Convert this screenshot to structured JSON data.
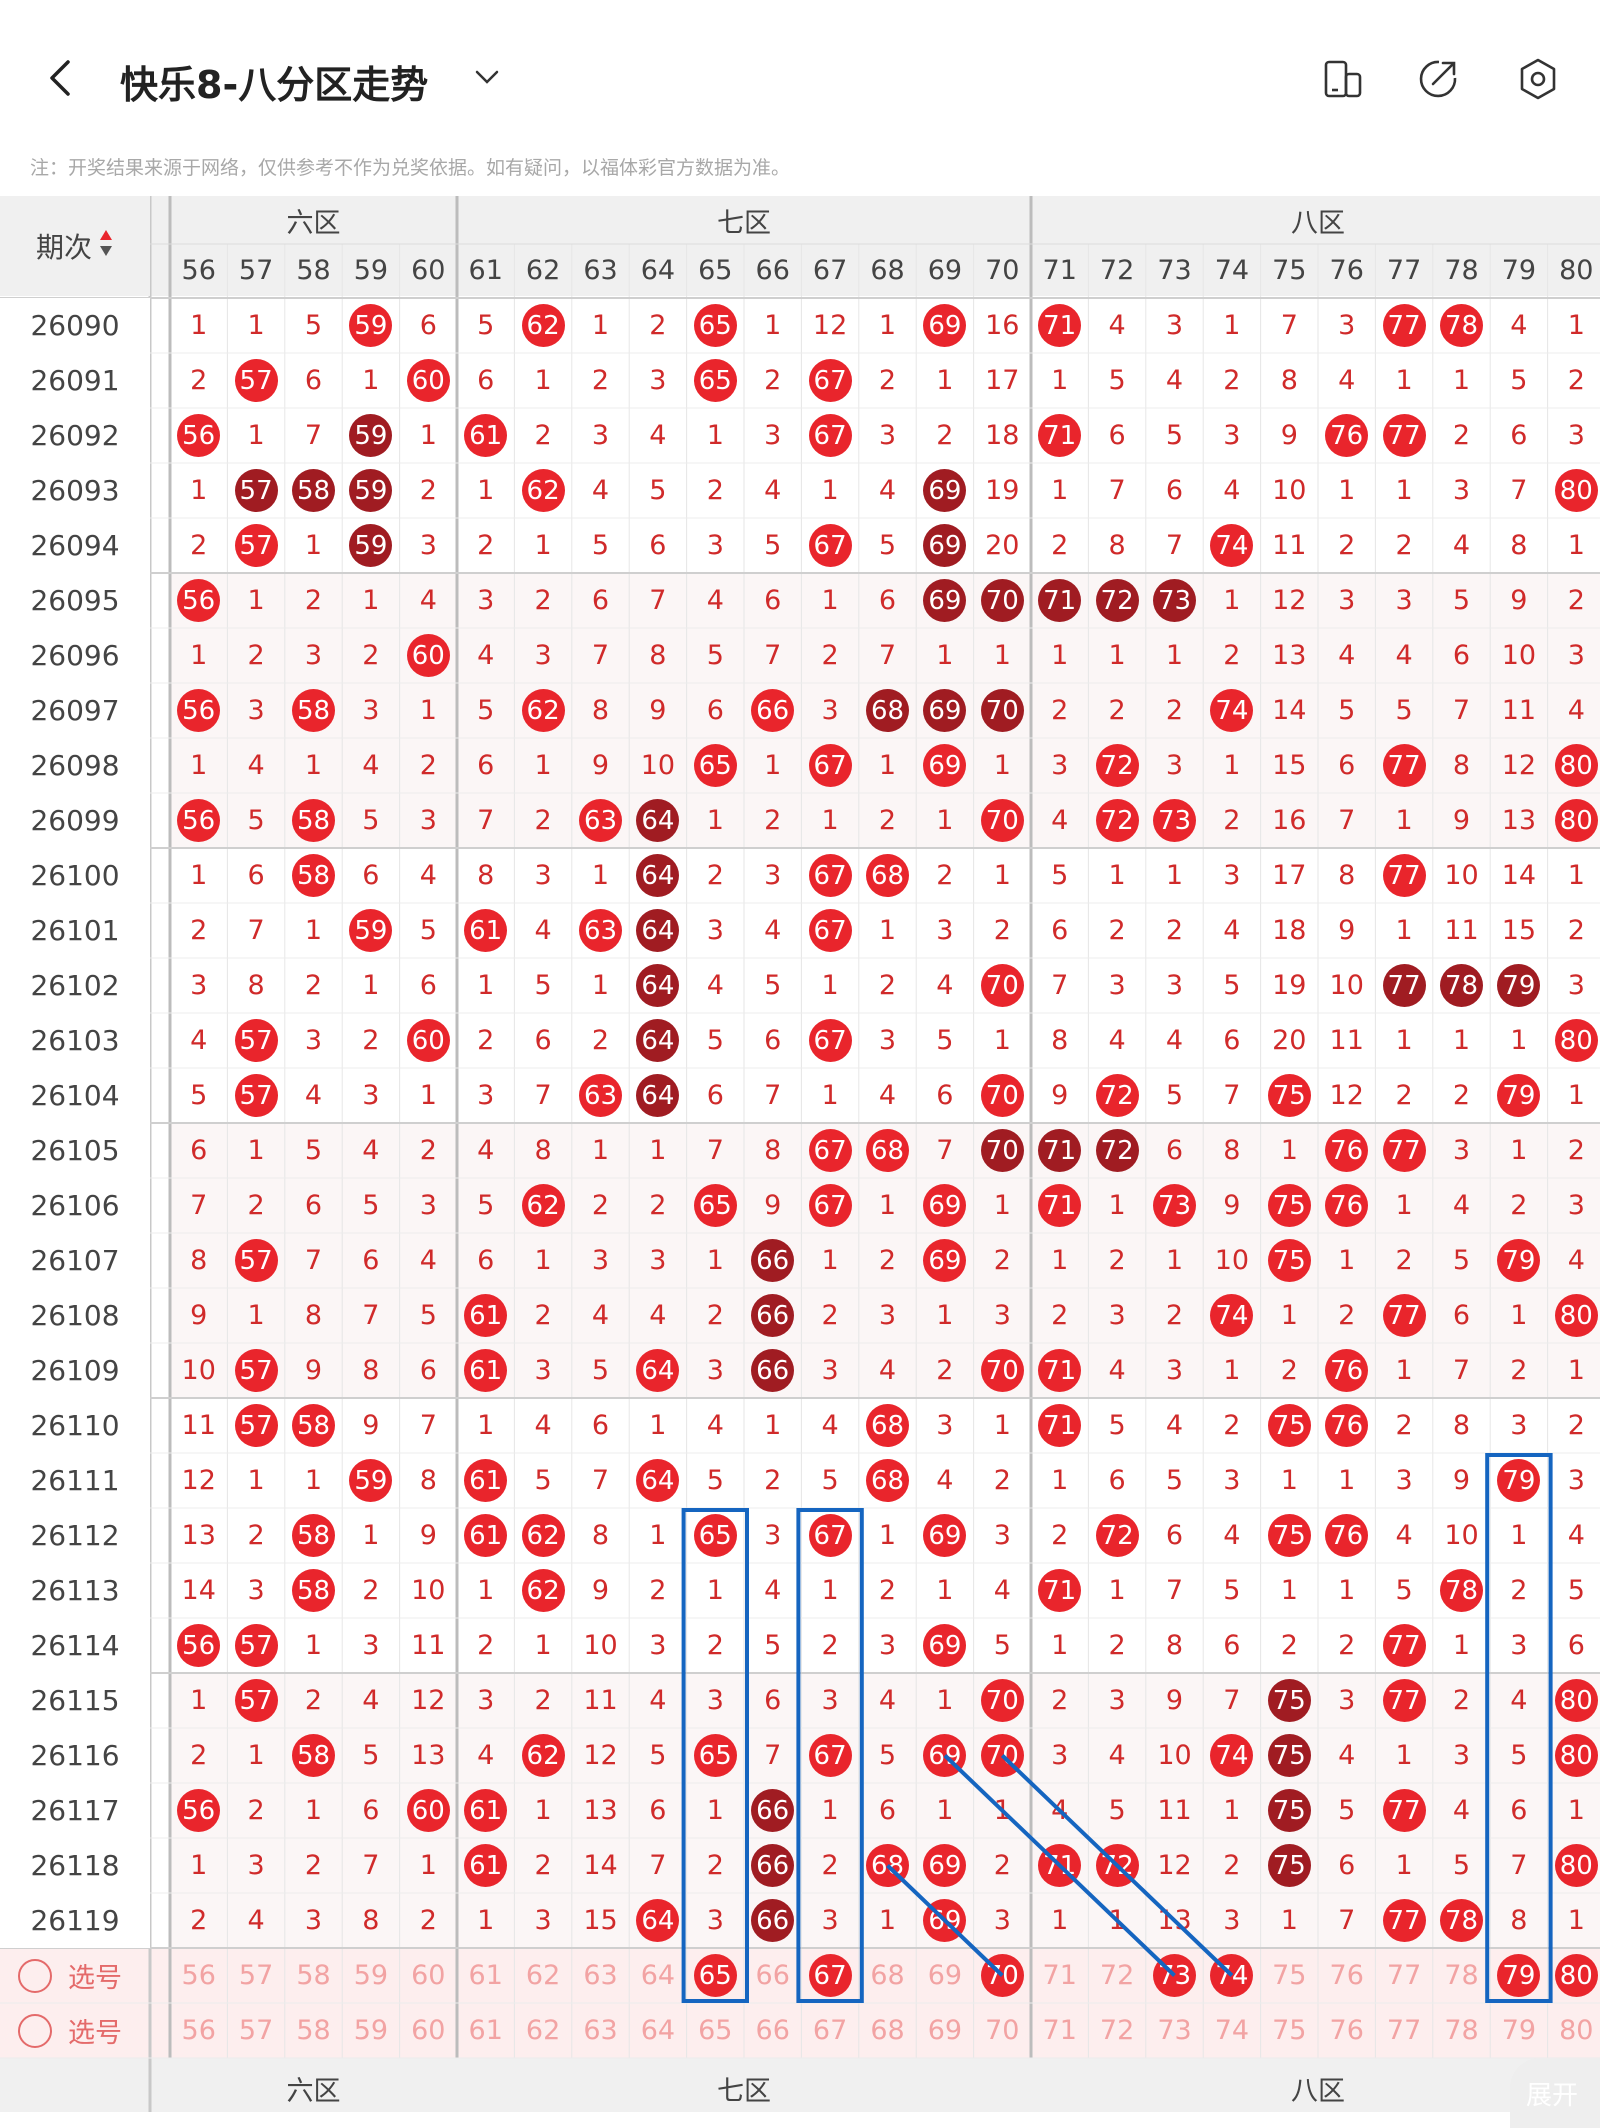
{
  "header": {
    "title": "快乐8-八分区走势",
    "note": "注：开奖结果来源于网络，仅供参考不作为兑奖依据。如有疑问，以福体彩官方数据为准。"
  },
  "table": {
    "issue_header": "期次",
    "zones": [
      "六区",
      "七区",
      "八区"
    ],
    "columns": [
      56,
      57,
      58,
      59,
      60,
      61,
      62,
      63,
      64,
      65,
      66,
      67,
      68,
      69,
      70,
      71,
      72,
      73,
      74,
      75,
      76,
      77,
      78,
      79,
      80
    ],
    "rows": [
      {
        "issue": "26090",
        "cells": [
          "1",
          "1",
          "5",
          "*59",
          "6",
          "5",
          "*62",
          "1",
          "2",
          "*65",
          "1",
          "12",
          "1",
          "*69",
          "16",
          "*71",
          "4",
          "3",
          "1",
          "7",
          "3",
          "*77",
          "*78",
          "4",
          "1"
        ]
      },
      {
        "issue": "26091",
        "cells": [
          "2",
          "*57",
          "6",
          "1",
          "*60",
          "6",
          "1",
          "2",
          "3",
          "*65",
          "2",
          "*67",
          "2",
          "1",
          "17",
          "1",
          "5",
          "4",
          "2",
          "8",
          "4",
          "1",
          "1",
          "5",
          "2"
        ]
      },
      {
        "issue": "26092",
        "cells": [
          "*56",
          "1",
          "7",
          "#59",
          "1",
          "*61",
          "2",
          "3",
          "4",
          "1",
          "3",
          "*67",
          "3",
          "2",
          "18",
          "*71",
          "6",
          "5",
          "3",
          "9",
          "*76",
          "*77",
          "2",
          "6",
          "3"
        ]
      },
      {
        "issue": "26093",
        "cells": [
          "1",
          "#57",
          "#58",
          "#59",
          "2",
          "1",
          "*62",
          "4",
          "5",
          "2",
          "4",
          "1",
          "4",
          "#69",
          "19",
          "1",
          "7",
          "6",
          "4",
          "10",
          "1",
          "1",
          "3",
          "7",
          "*80"
        ]
      },
      {
        "issue": "26094",
        "cells": [
          "2",
          "*57",
          "1",
          "#59",
          "3",
          "2",
          "1",
          "5",
          "6",
          "3",
          "5",
          "*67",
          "5",
          "#69",
          "20",
          "2",
          "8",
          "7",
          "*74",
          "11",
          "2",
          "2",
          "4",
          "8",
          "1"
        ]
      },
      {
        "issue": "26095",
        "cells": [
          "*56",
          "1",
          "2",
          "1",
          "4",
          "3",
          "2",
          "6",
          "7",
          "4",
          "6",
          "1",
          "6",
          "#69",
          "#70",
          "#71",
          "#72",
          "#73",
          "1",
          "12",
          "3",
          "3",
          "5",
          "9",
          "2"
        ]
      },
      {
        "issue": "26096",
        "cells": [
          "1",
          "2",
          "3",
          "2",
          "*60",
          "4",
          "3",
          "7",
          "8",
          "5",
          "7",
          "2",
          "7",
          "1",
          "1",
          "1",
          "1",
          "1",
          "2",
          "13",
          "4",
          "4",
          "6",
          "10",
          "3"
        ]
      },
      {
        "issue": "26097",
        "cells": [
          "*56",
          "3",
          "*58",
          "3",
          "1",
          "5",
          "*62",
          "8",
          "9",
          "6",
          "*66",
          "3",
          "#68",
          "#69",
          "#70",
          "2",
          "2",
          "2",
          "*74",
          "14",
          "5",
          "5",
          "7",
          "11",
          "4"
        ]
      },
      {
        "issue": "26098",
        "cells": [
          "1",
          "4",
          "1",
          "4",
          "2",
          "6",
          "1",
          "9",
          "10",
          "*65",
          "1",
          "*67",
          "1",
          "*69",
          "1",
          "3",
          "*72",
          "3",
          "1",
          "15",
          "6",
          "*77",
          "8",
          "12",
          "*80"
        ]
      },
      {
        "issue": "26099",
        "cells": [
          "*56",
          "5",
          "*58",
          "5",
          "3",
          "7",
          "2",
          "*63",
          "#64",
          "1",
          "2",
          "1",
          "2",
          "1",
          "*70",
          "4",
          "*72",
          "*73",
          "2",
          "16",
          "7",
          "1",
          "9",
          "13",
          "*80"
        ]
      },
      {
        "issue": "26100",
        "cells": [
          "1",
          "6",
          "*58",
          "6",
          "4",
          "8",
          "3",
          "1",
          "#64",
          "2",
          "3",
          "*67",
          "*68",
          "2",
          "1",
          "5",
          "1",
          "1",
          "3",
          "17",
          "8",
          "*77",
          "10",
          "14",
          "1"
        ]
      },
      {
        "issue": "26101",
        "cells": [
          "2",
          "7",
          "1",
          "*59",
          "5",
          "*61",
          "4",
          "*63",
          "#64",
          "3",
          "4",
          "*67",
          "1",
          "3",
          "2",
          "6",
          "2",
          "2",
          "4",
          "18",
          "9",
          "1",
          "11",
          "15",
          "2"
        ]
      },
      {
        "issue": "26102",
        "cells": [
          "3",
          "8",
          "2",
          "1",
          "6",
          "1",
          "5",
          "1",
          "#64",
          "4",
          "5",
          "1",
          "2",
          "4",
          "*70",
          "7",
          "3",
          "3",
          "5",
          "19",
          "10",
          "#77",
          "#78",
          "#79",
          "3"
        ]
      },
      {
        "issue": "26103",
        "cells": [
          "4",
          "*57",
          "3",
          "2",
          "*60",
          "2",
          "6",
          "2",
          "#64",
          "5",
          "6",
          "*67",
          "3",
          "5",
          "1",
          "8",
          "4",
          "4",
          "6",
          "20",
          "11",
          "1",
          "1",
          "1",
          "*80"
        ]
      },
      {
        "issue": "26104",
        "cells": [
          "5",
          "*57",
          "4",
          "3",
          "1",
          "3",
          "7",
          "*63",
          "#64",
          "6",
          "7",
          "1",
          "4",
          "6",
          "*70",
          "9",
          "*72",
          "5",
          "7",
          "*75",
          "12",
          "2",
          "2",
          "*79",
          "1"
        ]
      },
      {
        "issue": "26105",
        "cells": [
          "6",
          "1",
          "5",
          "4",
          "2",
          "4",
          "8",
          "1",
          "1",
          "7",
          "8",
          "*67",
          "*68",
          "7",
          "#70",
          "#71",
          "#72",
          "6",
          "8",
          "1",
          "*76",
          "*77",
          "3",
          "1",
          "2"
        ]
      },
      {
        "issue": "26106",
        "cells": [
          "7",
          "2",
          "6",
          "5",
          "3",
          "5",
          "*62",
          "2",
          "2",
          "*65",
          "9",
          "*67",
          "1",
          "*69",
          "1",
          "*71",
          "1",
          "*73",
          "9",
          "*75",
          "*76",
          "1",
          "4",
          "2",
          "3"
        ]
      },
      {
        "issue": "26107",
        "cells": [
          "8",
          "*57",
          "7",
          "6",
          "4",
          "6",
          "1",
          "3",
          "3",
          "1",
          "#66",
          "1",
          "2",
          "*69",
          "2",
          "1",
          "2",
          "1",
          "10",
          "*75",
          "1",
          "2",
          "5",
          "*79",
          "4"
        ]
      },
      {
        "issue": "26108",
        "cells": [
          "9",
          "1",
          "8",
          "7",
          "5",
          "*61",
          "2",
          "4",
          "4",
          "2",
          "#66",
          "2",
          "3",
          "1",
          "3",
          "2",
          "3",
          "2",
          "*74",
          "1",
          "2",
          "*77",
          "6",
          "1",
          "*80"
        ]
      },
      {
        "issue": "26109",
        "cells": [
          "10",
          "*57",
          "9",
          "8",
          "6",
          "*61",
          "3",
          "5",
          "*64",
          "3",
          "#66",
          "3",
          "4",
          "2",
          "*70",
          "*71",
          "4",
          "3",
          "1",
          "2",
          "*76",
          "1",
          "7",
          "2",
          "1"
        ]
      },
      {
        "issue": "26110",
        "cells": [
          "11",
          "*57",
          "*58",
          "9",
          "7",
          "1",
          "4",
          "6",
          "1",
          "4",
          "1",
          "4",
          "*68",
          "3",
          "1",
          "*71",
          "5",
          "4",
          "2",
          "*75",
          "*76",
          "2",
          "8",
          "3",
          "2"
        ]
      },
      {
        "issue": "26111",
        "cells": [
          "12",
          "1",
          "1",
          "*59",
          "8",
          "*61",
          "5",
          "7",
          "*64",
          "5",
          "2",
          "5",
          "*68",
          "4",
          "2",
          "1",
          "6",
          "5",
          "3",
          "1",
          "1",
          "3",
          "9",
          "*79",
          "3"
        ]
      },
      {
        "issue": "26112",
        "cells": [
          "13",
          "2",
          "*58",
          "1",
          "9",
          "*61",
          "*62",
          "8",
          "1",
          "*65",
          "3",
          "*67",
          "1",
          "*69",
          "3",
          "2",
          "*72",
          "6",
          "4",
          "*75",
          "*76",
          "4",
          "10",
          "1",
          "4"
        ]
      },
      {
        "issue": "26113",
        "cells": [
          "14",
          "3",
          "*58",
          "2",
          "10",
          "1",
          "*62",
          "9",
          "2",
          "1",
          "4",
          "1",
          "2",
          "1",
          "4",
          "*71",
          "1",
          "7",
          "5",
          "1",
          "1",
          "5",
          "*78",
          "2",
          "5"
        ]
      },
      {
        "issue": "26114",
        "cells": [
          "*56",
          "*57",
          "1",
          "3",
          "11",
          "2",
          "1",
          "10",
          "3",
          "2",
          "5",
          "2",
          "3",
          "*69",
          "5",
          "1",
          "2",
          "8",
          "6",
          "2",
          "2",
          "*77",
          "1",
          "3",
          "6"
        ]
      },
      {
        "issue": "26115",
        "cells": [
          "1",
          "*57",
          "2",
          "4",
          "12",
          "3",
          "2",
          "11",
          "4",
          "3",
          "6",
          "3",
          "4",
          "1",
          "*70",
          "2",
          "3",
          "9",
          "7",
          "#75",
          "3",
          "*77",
          "2",
          "4",
          "*80"
        ]
      },
      {
        "issue": "26116",
        "cells": [
          "2",
          "1",
          "*58",
          "5",
          "13",
          "4",
          "*62",
          "12",
          "5",
          "*65",
          "7",
          "*67",
          "5",
          "*69",
          "*70",
          "3",
          "4",
          "10",
          "*74",
          "#75",
          "4",
          "1",
          "3",
          "5",
          "*80"
        ]
      },
      {
        "issue": "26117",
        "cells": [
          "*56",
          "2",
          "1",
          "6",
          "*60",
          "*61",
          "1",
          "13",
          "6",
          "1",
          "#66",
          "1",
          "6",
          "1",
          "1",
          "4",
          "5",
          "11",
          "1",
          "#75",
          "5",
          "*77",
          "4",
          "6",
          "1"
        ]
      },
      {
        "issue": "26118",
        "cells": [
          "1",
          "3",
          "2",
          "7",
          "1",
          "*61",
          "2",
          "14",
          "7",
          "2",
          "#66",
          "2",
          "*68",
          "*69",
          "2",
          "*71",
          "*72",
          "12",
          "2",
          "#75",
          "6",
          "1",
          "5",
          "7",
          "*80"
        ]
      },
      {
        "issue": "26119",
        "cells": [
          "2",
          "4",
          "3",
          "8",
          "2",
          "1",
          "3",
          "15",
          "*64",
          "3",
          "#66",
          "3",
          "1",
          "*69",
          "3",
          "1",
          "1",
          "13",
          "3",
          "1",
          "7",
          "*77",
          "*78",
          "8",
          "1"
        ]
      }
    ],
    "select_rows": [
      {
        "label": "选号",
        "picked": [
          65,
          67,
          70,
          73,
          74,
          79,
          80
        ]
      },
      {
        "label": "选号",
        "picked": []
      }
    ],
    "expand_label": "展开"
  },
  "colors": {
    "accent": "#e9252c",
    "dark": "#a01c22",
    "box": "#1565c0"
  }
}
